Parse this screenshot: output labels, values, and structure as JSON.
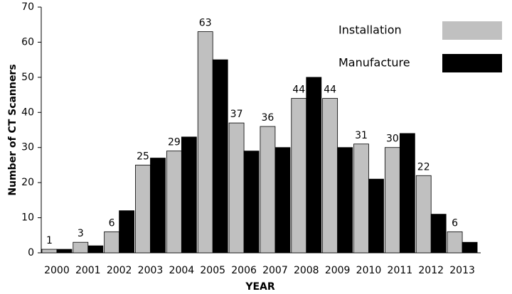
{
  "chart_data": {
    "type": "bar",
    "x_label": "YEAR",
    "y_label": "Number of CT Scanners",
    "categories": [
      "2000",
      "2001",
      "2002",
      "2003",
      "2004",
      "2005",
      "2006",
      "2007",
      "2008",
      "2009",
      "2010",
      "2011",
      "2012",
      "2013"
    ],
    "series": [
      {
        "name": "Installation",
        "color": "#c0c0c0",
        "show_labels": true,
        "values": [
          1,
          3,
          6,
          25,
          29,
          63,
          37,
          36,
          44,
          44,
          31,
          30,
          22,
          6
        ]
      },
      {
        "name": "Manufacture",
        "color": "#000000",
        "show_labels": false,
        "values": [
          1,
          2,
          12,
          27,
          33,
          55,
          29,
          30,
          50,
          30,
          21,
          34,
          11,
          3
        ]
      }
    ],
    "ylim": [
      0,
      70
    ],
    "yticks": [
      0,
      10,
      20,
      30,
      40,
      50,
      60,
      70
    ],
    "grid": false,
    "legend": "upper right"
  }
}
